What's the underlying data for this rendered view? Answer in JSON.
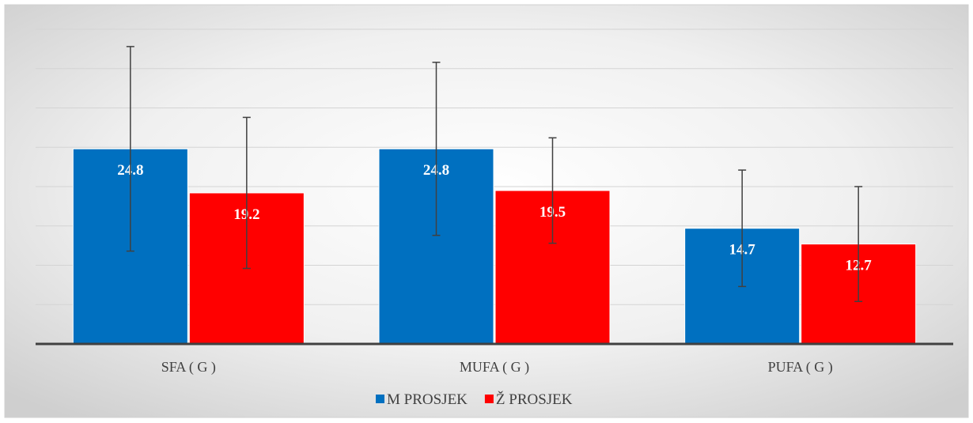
{
  "chart_data": {
    "type": "bar",
    "categories": [
      "SFA ( G )",
      "MUFA ( G )",
      "PUFA ( G )"
    ],
    "series": [
      {
        "name": "M PROSJEK",
        "color": "#0070c0",
        "values": [
          24.8,
          24.8,
          14.7
        ],
        "errors": [
          13,
          11,
          7.4
        ]
      },
      {
        "name": "Ž PROSJEK",
        "color": "#ff0000",
        "values": [
          19.2,
          19.5,
          12.7
        ],
        "errors": [
          9.6,
          6.7,
          7.3
        ]
      }
    ],
    "ylim": [
      0,
      40
    ],
    "yticks": [
      0,
      5,
      10,
      15,
      20,
      25,
      30,
      35,
      40
    ],
    "grid": true,
    "legend": "bottom"
  }
}
